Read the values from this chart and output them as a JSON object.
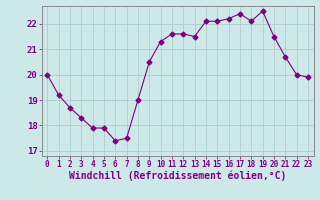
{
  "x": [
    0,
    1,
    2,
    3,
    4,
    5,
    6,
    7,
    8,
    9,
    10,
    11,
    12,
    13,
    14,
    15,
    16,
    17,
    18,
    19,
    20,
    21,
    22,
    23
  ],
  "y": [
    20.0,
    19.2,
    18.7,
    18.3,
    17.9,
    17.9,
    17.4,
    17.5,
    19.0,
    20.5,
    21.3,
    21.6,
    21.6,
    21.5,
    22.1,
    22.1,
    22.2,
    22.4,
    22.1,
    22.5,
    21.5,
    20.7,
    20.0,
    19.9
  ],
  "line_color": "#800080",
  "marker": "D",
  "marker_size": 2.5,
  "bg_color": "#cce8e8",
  "grid_color": "#b0cccc",
  "xlabel": "Windchill (Refroidissement éolien,°C)",
  "ylim_min": 16.8,
  "ylim_max": 22.7,
  "xlim_min": -0.5,
  "xlim_max": 23.5,
  "yticks": [
    17,
    18,
    19,
    20,
    21,
    22
  ],
  "xticks": [
    0,
    1,
    2,
    3,
    4,
    5,
    6,
    7,
    8,
    9,
    10,
    11,
    12,
    13,
    14,
    15,
    16,
    17,
    18,
    19,
    20,
    21,
    22,
    23
  ],
  "tick_color": "#800080",
  "tick_fontsize": 5.5,
  "xlabel_fontsize": 7,
  "spine_color": "#888888"
}
